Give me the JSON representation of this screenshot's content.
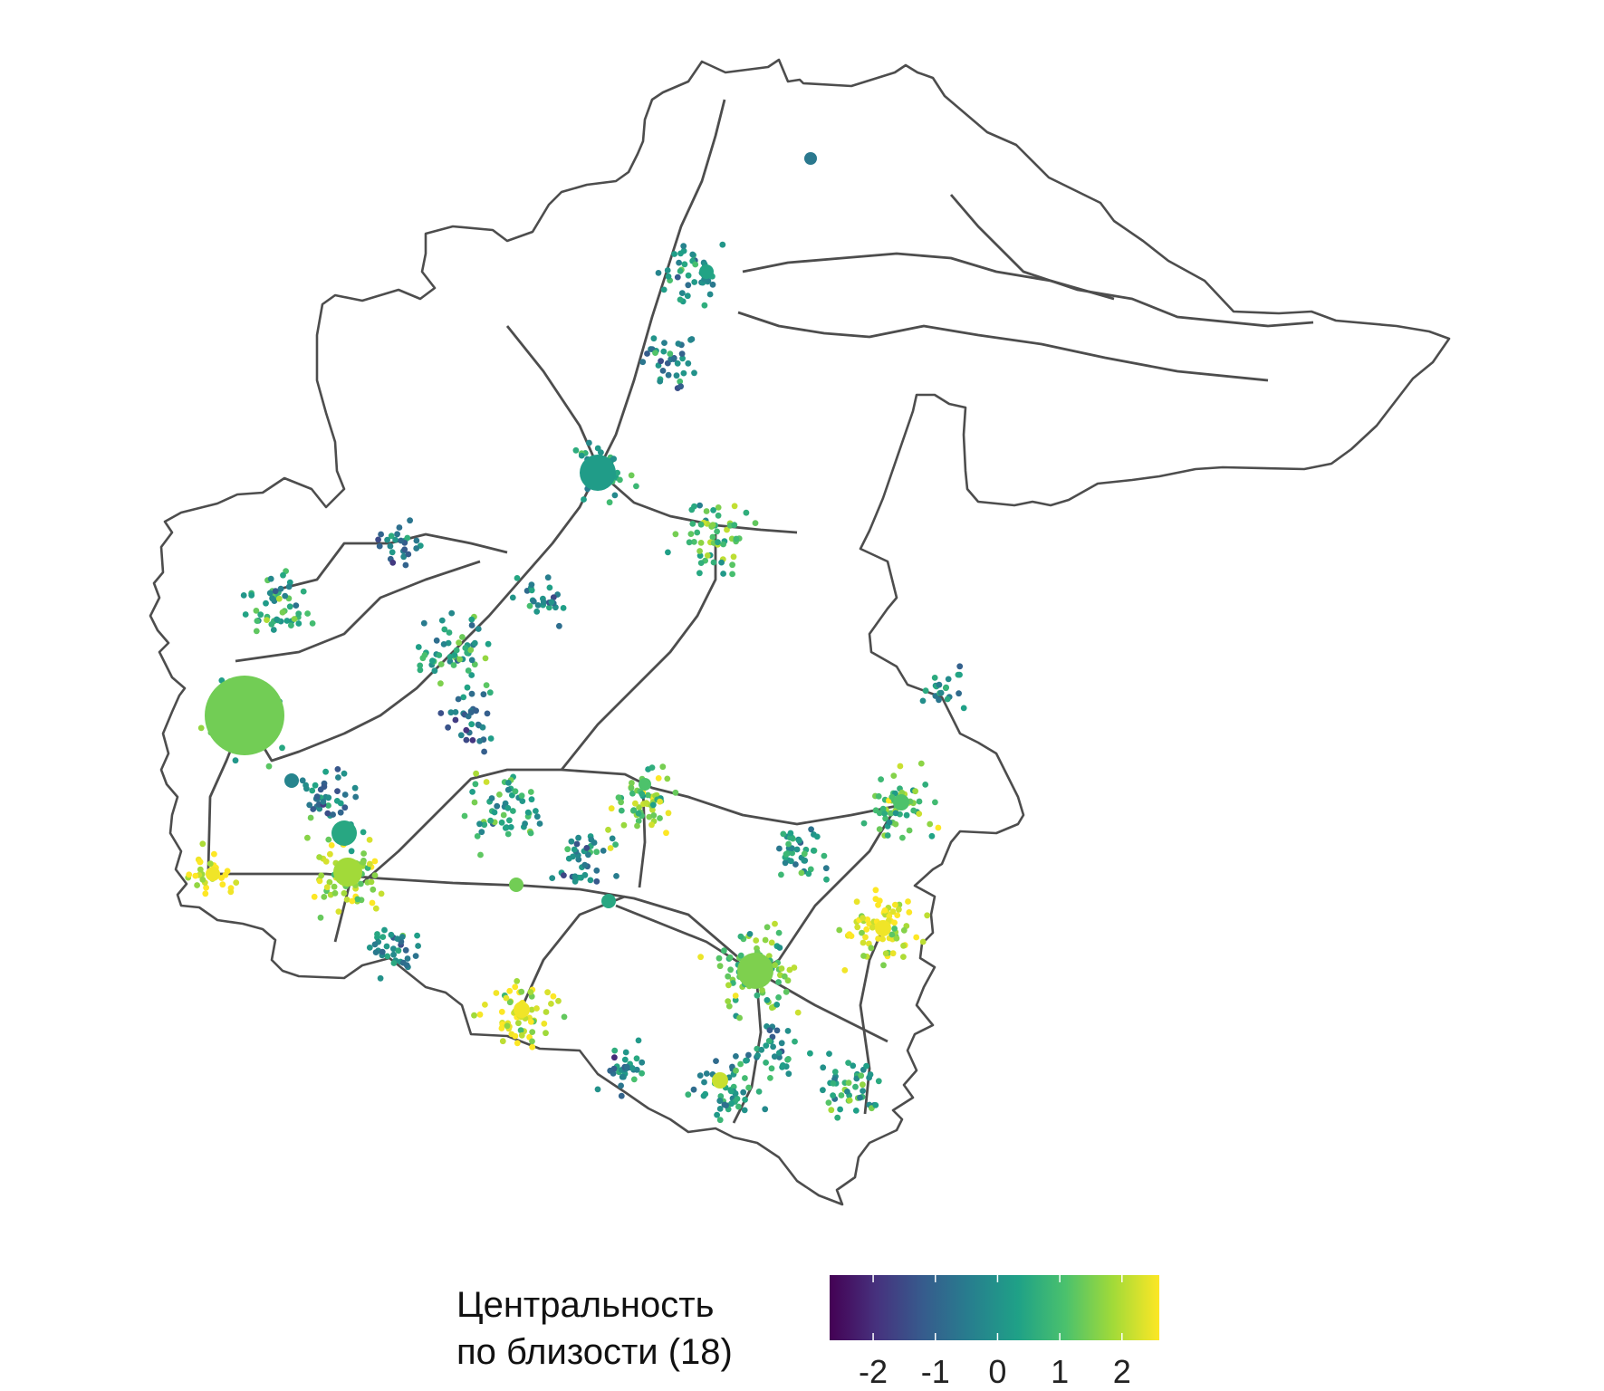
{
  "legend": {
    "title_line1": "Центральность",
    "title_line2": "по близости (18)",
    "ticks": [
      "-2",
      "-1",
      "0",
      "1",
      "2"
    ],
    "tick_values": [
      -2,
      -1,
      0,
      1,
      2
    ],
    "range": [
      -2.7,
      2.6
    ],
    "colormap": "viridis",
    "colors": [
      "#440154",
      "#46327e",
      "#365c8d",
      "#277f8e",
      "#1fa187",
      "#4ac16d",
      "#a0da39",
      "#fde725"
    ]
  },
  "map": {
    "boundary_color": "#4d4d4d",
    "road_color": "#4d4d4d",
    "symbol": "circle sized and colored by closeness centrality"
  }
}
